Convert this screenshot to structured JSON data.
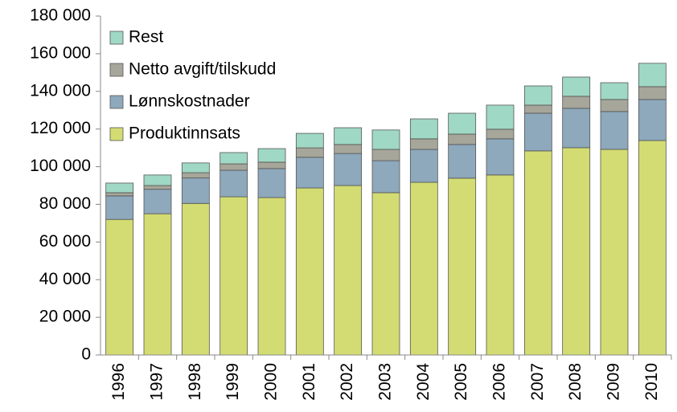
{
  "chart_data": {
    "type": "stacked_bar",
    "categories": [
      "1996",
      "1997",
      "1998",
      "1999",
      "2000",
      "2001",
      "2002",
      "2003",
      "2004",
      "2005",
      "2006",
      "2007",
      "2008",
      "2009",
      "2010"
    ],
    "series": [
      {
        "name": "Produktinnsats",
        "color": "#d3dc72",
        "values": [
          72000,
          75000,
          80500,
          84000,
          83600,
          88700,
          90000,
          86200,
          91700,
          93900,
          95600,
          108400,
          110100,
          109200,
          113900
        ]
      },
      {
        "name": "Lønnskostnader",
        "color": "#8ea8bc",
        "values": [
          12500,
          13000,
          13500,
          14100,
          15400,
          16300,
          17000,
          17000,
          17500,
          17900,
          19200,
          20000,
          20900,
          20100,
          21800
        ]
      },
      {
        "name": "Netto avgift/tilskudd",
        "color": "#a6a69a",
        "values": [
          1700,
          2000,
          2800,
          3400,
          3400,
          5000,
          4800,
          6000,
          5600,
          5500,
          5100,
          4300,
          6400,
          6400,
          6800
        ]
      },
      {
        "name": "Rest",
        "color": "#9fd8c4",
        "values": [
          5100,
          5600,
          5200,
          6000,
          7200,
          7700,
          8900,
          10300,
          10600,
          11100,
          12800,
          10200,
          10200,
          8900,
          12400
        ]
      }
    ],
    "ylim": [
      0,
      180000
    ],
    "yticks": [
      0,
      {
        "value": 20000,
        "label": "20 000"
      },
      {
        "value": 40000,
        "label": "40 000"
      },
      {
        "value": 60000,
        "label": "60 000"
      },
      {
        "value": 80000,
        "label": "80 000"
      },
      {
        "value": 100000,
        "label": "100 000"
      },
      {
        "value": 120000,
        "label": "120 000"
      },
      {
        "value": 140000,
        "label": "140 000"
      },
      {
        "value": 160000,
        "label": "160 000"
      },
      {
        "value": 180000,
        "label": "180 000"
      }
    ],
    "legend": "top-left"
  }
}
